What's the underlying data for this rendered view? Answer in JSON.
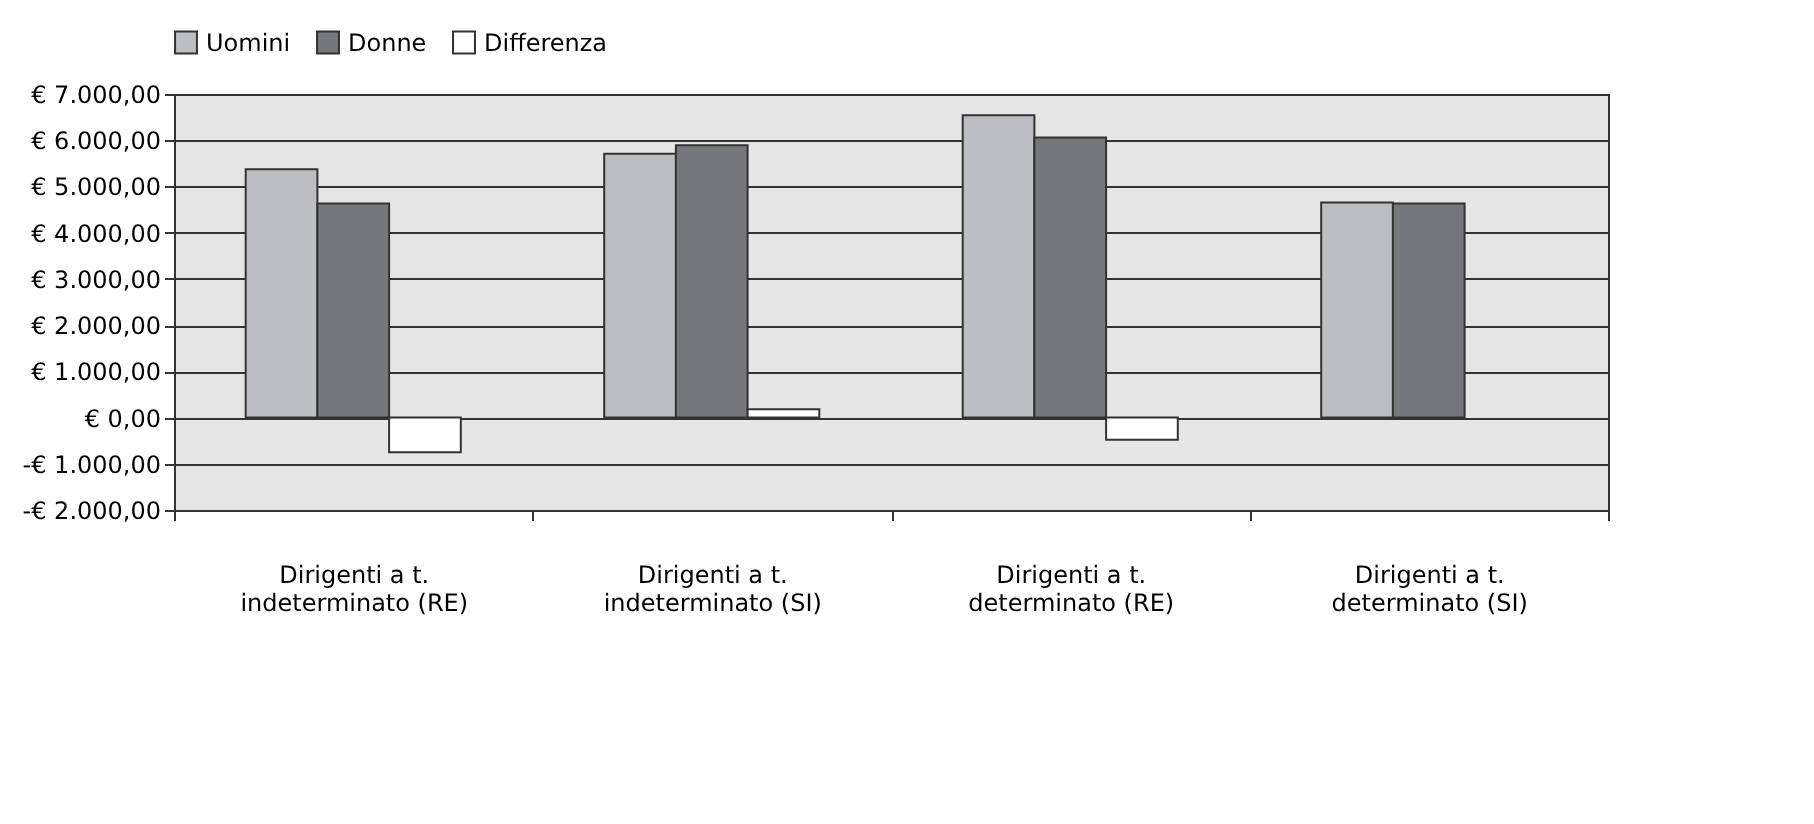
{
  "chart_data": {
    "type": "bar",
    "categories": [
      "Dirigenti a t. indeterminato (RE)",
      "Dirigenti a t. indeterminato (SI)",
      "Dirigenti a t. determinato (RE)",
      "Dirigenti a t. determinato (SI)"
    ],
    "series": [
      {
        "name": "Uomini",
        "color": "#bdbec2",
        "values": [
          5370,
          5710,
          6540,
          4650
        ]
      },
      {
        "name": "Donne",
        "color": "#76777b",
        "values": [
          4630,
          5890,
          6060,
          4630
        ]
      },
      {
        "name": "Differenza",
        "color": "#ffffff",
        "values": [
          -750,
          180,
          -480,
          null
        ]
      }
    ],
    "ylim": [
      -2000,
      7000
    ],
    "yticks": [
      {
        "value": -2000,
        "label": "-€ 2.000,00"
      },
      {
        "value": -1000,
        "label": "-€ 1.000,00"
      },
      {
        "value": 0,
        "label": "€ 0,00"
      },
      {
        "value": 1000,
        "label": "€ 1.000,00"
      },
      {
        "value": 2000,
        "label": "€ 2.000,00"
      },
      {
        "value": 3000,
        "label": "€ 3.000,00"
      },
      {
        "value": 4000,
        "label": "€ 4.000,00"
      },
      {
        "value": 5000,
        "label": "€ 5.000,00"
      },
      {
        "value": 6000,
        "label": "€ 6.000,00"
      },
      {
        "value": 7000,
        "label": "€ 7.000,00"
      }
    ],
    "grid": "y",
    "legend": "top"
  }
}
